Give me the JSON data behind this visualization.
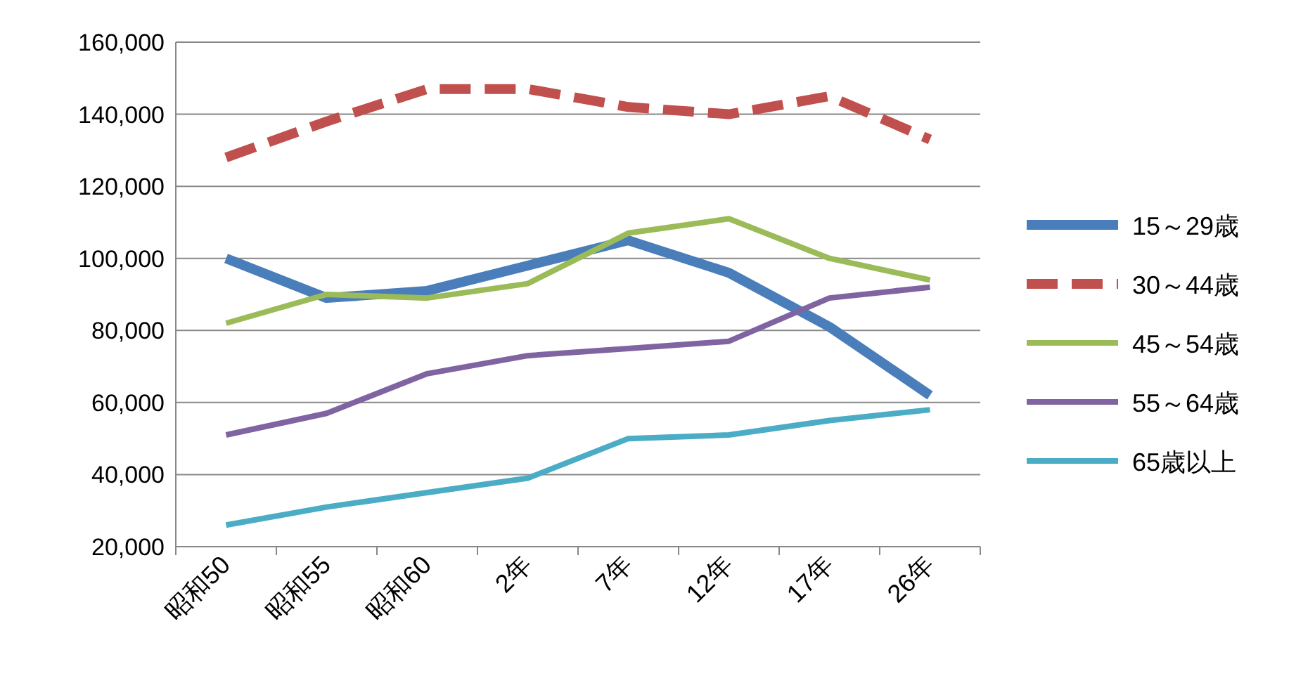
{
  "chart_data": {
    "type": "line",
    "categories": [
      "昭和50",
      "昭和55",
      "昭和60",
      "2年",
      "7年",
      "12年",
      "17年",
      "26年"
    ],
    "series": [
      {
        "name": "15～29歳",
        "color": "#4a7ebb",
        "line_style": "solid",
        "values": [
          100000,
          89000,
          91000,
          98000,
          105000,
          96000,
          81000,
          62000
        ]
      },
      {
        "name": "30～44歳",
        "color": "#c0504d",
        "line_style": "dashed",
        "values": [
          128000,
          138000,
          147000,
          147000,
          142000,
          140000,
          145000,
          133000
        ]
      },
      {
        "name": "45～54歳",
        "color": "#9bbb59",
        "line_style": "solid",
        "values": [
          82000,
          90000,
          89000,
          93000,
          107000,
          111000,
          100000,
          94000
        ]
      },
      {
        "name": "55～64歳",
        "color": "#8064a2",
        "line_style": "solid",
        "values": [
          51000,
          57000,
          68000,
          73000,
          75000,
          77000,
          89000,
          92000
        ]
      },
      {
        "name": "65歳以上",
        "color": "#4bacc6",
        "line_style": "solid",
        "values": [
          26000,
          31000,
          35000,
          39000,
          50000,
          51000,
          55000,
          58000
        ]
      }
    ],
    "ylim": [
      20000,
      160000
    ],
    "yticks": [
      {
        "value": 20000,
        "label": "20,000"
      },
      {
        "value": 40000,
        "label": "40,000"
      },
      {
        "value": 60000,
        "label": "60,000"
      },
      {
        "value": 80000,
        "label": "80,000"
      },
      {
        "value": 100000,
        "label": "100,000"
      },
      {
        "value": 120000,
        "label": "120,000"
      },
      {
        "value": 140000,
        "label": "140,000"
      },
      {
        "value": 160000,
        "label": "160,000"
      }
    ],
    "grid": "y",
    "legend": "right",
    "marker": "none"
  }
}
